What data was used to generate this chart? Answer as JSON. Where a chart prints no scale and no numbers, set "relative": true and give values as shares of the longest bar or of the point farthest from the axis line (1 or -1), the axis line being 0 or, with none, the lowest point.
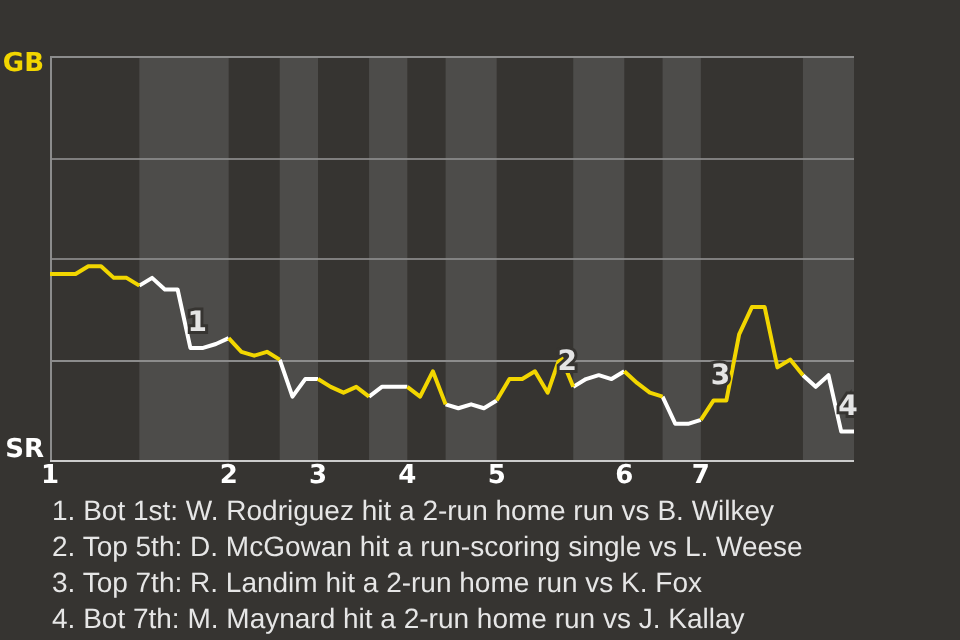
{
  "chart_data": {
    "type": "line",
    "relative": true,
    "categories": [
      "1",
      null,
      null,
      null,
      null,
      null,
      null,
      null,
      null,
      null,
      null,
      null,
      null,
      null,
      "2",
      null,
      null,
      null,
      null,
      null,
      null,
      "3",
      null,
      null,
      null,
      null,
      null,
      null,
      "4",
      null,
      null,
      null,
      null,
      null,
      null,
      "5",
      null,
      null,
      null,
      null,
      null,
      null,
      null,
      null,
      null,
      "6",
      null,
      null,
      null,
      null,
      null,
      "7",
      null,
      null,
      null,
      null,
      null,
      null,
      null,
      null,
      null,
      null,
      null,
      null
    ],
    "series": [
      {
        "color": "#f2d600",
        "values": [
          0.96,
          0.96,
          0.96,
          1,
          1,
          0.94,
          0.94,
          0.9,
          null,
          null,
          null,
          null,
          null,
          null,
          0.63,
          0.56,
          0.54,
          0.56,
          0.52,
          null,
          null,
          0.42,
          0.38,
          0.35,
          0.38,
          0.33,
          null,
          null,
          0.38,
          0.33,
          0.46,
          0.29,
          null,
          null,
          null,
          0.31,
          0.42,
          0.42,
          0.46,
          0.35,
          0.54,
          0.38,
          null,
          null,
          null,
          0.46,
          0.4,
          0.35,
          0.33,
          null,
          null,
          0.21,
          0.31,
          0.31,
          0.65,
          0.79,
          0.79,
          0.48,
          0.52,
          0.44,
          null,
          null,
          null,
          null
        ]
      },
      {
        "color": "#ffffff",
        "values": [
          null,
          null,
          null,
          null,
          null,
          null,
          null,
          0.9,
          0.94,
          0.88,
          0.88,
          0.58,
          0.58,
          0.6,
          0.63,
          null,
          null,
          null,
          0.52,
          0.33,
          0.42,
          0.42,
          null,
          null,
          null,
          0.33,
          0.38,
          0.38,
          0.38,
          null,
          null,
          0.29,
          0.27,
          0.29,
          0.27,
          0.31,
          null,
          null,
          null,
          null,
          null,
          0.38,
          0.42,
          0.44,
          0.42,
          0.46,
          null,
          null,
          0.33,
          0.19,
          0.19,
          0.21,
          null,
          null,
          null,
          null,
          null,
          null,
          null,
          0.44,
          0.38,
          0.44,
          0.15,
          0.15
        ]
      }
    ],
    "ref_lines": [
      {
        "axis": "y",
        "value": 0.52,
        "color": "#8c8c8c"
      }
    ],
    "legend": false,
    "marker": "none",
    "line_style": "solid",
    "annotations": [
      "GB",
      "SR",
      "1",
      "2",
      "3",
      "4",
      "1. Bot 1st: W. Rodriguez hit a 2-run home run vs B. Wilkey",
      "2. Top 5th: D. McGowan hit a run-scoring single vs L. Weese",
      "3. Top 7th: R. Landim hit a 2-run home run vs K. Fox",
      "4. Bot 7th: M. Maynard hit a 2-run home run vs J. Kallay"
    ]
  }
}
